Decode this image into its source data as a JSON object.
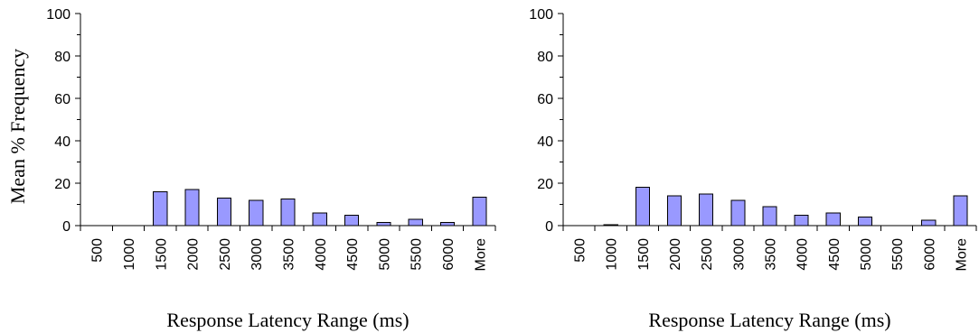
{
  "chart_data": [
    {
      "type": "bar",
      "categories": [
        "500",
        "1000",
        "1500",
        "2000",
        "2500",
        "3000",
        "3500",
        "4000",
        "4500",
        "5000",
        "5500",
        "6000",
        "More"
      ],
      "values": [
        0,
        0,
        16,
        17,
        13,
        12,
        12.5,
        6,
        5,
        1.5,
        3,
        1.5,
        13.5
      ],
      "xlabel": "Response Latency Range (ms)",
      "ylabel": "Mean % Frequency",
      "yticks": [
        0,
        20,
        40,
        60,
        80,
        100
      ],
      "ylim": [
        0,
        100
      ],
      "grid": false,
      "bar_color": "#9999ff"
    },
    {
      "type": "bar",
      "categories": [
        "500",
        "1000",
        "1500",
        "2000",
        "2500",
        "3000",
        "3500",
        "4000",
        "4500",
        "5000",
        "5500",
        "6000",
        "More"
      ],
      "values": [
        0,
        0.5,
        18,
        14,
        15,
        12,
        9,
        5,
        6,
        4,
        0,
        2.5,
        14
      ],
      "xlabel": "Response Latency Range (ms)",
      "ylabel": "",
      "yticks": [
        0,
        20,
        40,
        60,
        80,
        100
      ],
      "ylim": [
        0,
        100
      ],
      "grid": false,
      "bar_color": "#9999ff"
    }
  ]
}
